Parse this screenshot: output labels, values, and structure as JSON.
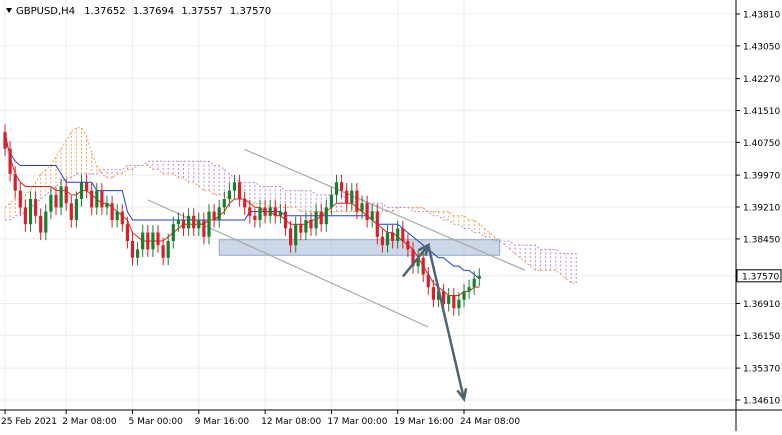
{
  "header": {
    "symbol": "GBPUSD,H4",
    "open": "1.37652",
    "high": "1.37694",
    "low": "1.37557",
    "close": "1.37570"
  },
  "chart_data": {
    "type": "candlestick",
    "symbol": "GBPUSD",
    "timeframe": "H4",
    "ylim": [
      1.3461,
      1.4381
    ],
    "y_ticks": [
      "1.43810",
      "1.43050",
      "1.42270",
      "1.41510",
      "1.40750",
      "1.39970",
      "1.39210",
      "1.38450",
      "1.37570",
      "1.36910",
      "1.36150",
      "1.35370",
      "1.34610"
    ],
    "y_tick_values": [
      1.4381,
      1.4305,
      1.4227,
      1.4151,
      1.4075,
      1.3997,
      1.3921,
      1.3845,
      1.3757,
      1.3691,
      1.3615,
      1.3537,
      1.3461
    ],
    "x_ticks": [
      "25 Feb 2021",
      "2 Mar 08:00",
      "5 Mar 00:00",
      "9 Mar 16:00",
      "12 Mar 08:00",
      "17 Mar 00:00",
      "19 Mar 16:00",
      "24 Mar 08:00"
    ],
    "x_tick_index": [
      0,
      12,
      25,
      38,
      51,
      64,
      77,
      90
    ],
    "current_price": "1.37570",
    "current_price_value": 1.3757,
    "closes": [
      1.406,
      1.4,
      1.396,
      1.392,
      1.388,
      1.394,
      1.39,
      1.386,
      1.391,
      1.395,
      1.392,
      1.397,
      1.393,
      1.389,
      1.394,
      1.398,
      1.396,
      1.392,
      1.396,
      1.392,
      1.393,
      1.389,
      1.391,
      1.388,
      1.384,
      1.38,
      1.382,
      1.386,
      1.382,
      1.386,
      1.383,
      1.38,
      1.384,
      1.388,
      1.389,
      1.387,
      1.39,
      1.387,
      1.389,
      1.385,
      1.391,
      1.389,
      1.392,
      1.394,
      1.396,
      1.398,
      1.394,
      1.392,
      1.39,
      1.389,
      1.392,
      1.39,
      1.392,
      1.39,
      1.391,
      1.387,
      1.383,
      1.388,
      1.386,
      1.389,
      1.387,
      1.391,
      1.388,
      1.392,
      1.395,
      1.398,
      1.396,
      1.393,
      1.396,
      1.391,
      1.393,
      1.389,
      1.391,
      1.385,
      1.383,
      1.386,
      1.384,
      1.387,
      1.384,
      1.382,
      1.378,
      1.38,
      1.376,
      1.373,
      1.37,
      1.372,
      1.369,
      1.371,
      1.368,
      1.37,
      1.372,
      1.373,
      1.375,
      1.3757
    ],
    "tenkan_sen": [
      1.41,
      1.404,
      1.4,
      1.398,
      1.397,
      1.397,
      1.397,
      1.397,
      1.397,
      1.397,
      1.396,
      1.396,
      1.396,
      1.395,
      1.395,
      1.396,
      1.396,
      1.395,
      1.394,
      1.393,
      1.393,
      1.392,
      1.391,
      1.39,
      1.389,
      1.386,
      1.385,
      1.384,
      1.384,
      1.384,
      1.384,
      1.384,
      1.385,
      1.386,
      1.387,
      1.388,
      1.388,
      1.388,
      1.388,
      1.388,
      1.389,
      1.389,
      1.39,
      1.391,
      1.393,
      1.394,
      1.394,
      1.394,
      1.393,
      1.392,
      1.392,
      1.391,
      1.391,
      1.39,
      1.39,
      1.389,
      1.388,
      1.388,
      1.388,
      1.388,
      1.389,
      1.389,
      1.39,
      1.391,
      1.392,
      1.393,
      1.393,
      1.393,
      1.393,
      1.392,
      1.391,
      1.39,
      1.389,
      1.388,
      1.387,
      1.386,
      1.386,
      1.385,
      1.384,
      1.383,
      1.382,
      1.38,
      1.378,
      1.376,
      1.374,
      1.373,
      1.372,
      1.371,
      1.371,
      1.371,
      1.372,
      1.372,
      1.373,
      1.373
    ],
    "kijun_sen": [
      1.408,
      1.405,
      1.403,
      1.402,
      1.402,
      1.402,
      1.402,
      1.402,
      1.402,
      1.402,
      1.402,
      1.4,
      1.398,
      1.398,
      1.398,
      1.398,
      1.398,
      1.398,
      1.396,
      1.396,
      1.396,
      1.396,
      1.396,
      1.396,
      1.391,
      1.389,
      1.389,
      1.389,
      1.389,
      1.389,
      1.389,
      1.389,
      1.389,
      1.389,
      1.389,
      1.389,
      1.389,
      1.389,
      1.389,
      1.389,
      1.389,
      1.389,
      1.389,
      1.389,
      1.389,
      1.389,
      1.389,
      1.389,
      1.391,
      1.391,
      1.391,
      1.391,
      1.391,
      1.391,
      1.391,
      1.39,
      1.39,
      1.39,
      1.39,
      1.39,
      1.39,
      1.39,
      1.39,
      1.39,
      1.39,
      1.39,
      1.39,
      1.39,
      1.39,
      1.39,
      1.39,
      1.39,
      1.389,
      1.388,
      1.388,
      1.388,
      1.388,
      1.388,
      1.387,
      1.386,
      1.385,
      1.384,
      1.383,
      1.382,
      1.381,
      1.38,
      1.38,
      1.379,
      1.378,
      1.378,
      1.377,
      1.377,
      1.376,
      1.375
    ],
    "cloud_span_a": [
      1.392,
      1.393,
      1.394,
      1.394,
      1.395,
      1.396,
      1.398,
      1.4,
      1.401,
      1.402,
      1.404,
      1.406,
      1.408,
      1.41,
      1.411,
      1.411,
      1.409,
      1.405,
      1.402,
      1.4,
      1.399,
      1.399,
      1.4,
      1.4,
      1.401,
      1.401,
      1.402,
      1.402,
      1.402,
      1.401,
      1.401,
      1.4,
      1.4,
      1.4,
      1.399,
      1.399,
      1.398,
      1.398,
      1.397,
      1.396,
      1.396,
      1.395,
      1.395,
      1.395,
      1.394,
      1.394,
      1.394,
      1.394,
      1.393,
      1.393,
      1.393,
      1.393,
      1.392,
      1.392,
      1.392,
      1.392,
      1.392,
      1.392,
      1.391,
      1.391,
      1.391,
      1.391,
      1.391,
      1.391,
      1.391,
      1.391,
      1.391,
      1.391,
      1.391,
      1.391,
      1.391,
      1.391,
      1.391,
      1.391,
      1.391,
      1.391,
      1.391,
      1.392,
      1.392,
      1.392,
      1.392,
      1.392,
      1.392,
      1.391,
      1.391,
      1.391,
      1.391,
      1.391,
      1.39,
      1.39,
      1.39,
      1.389,
      1.389,
      1.388,
      1.387,
      1.386,
      1.385,
      1.384,
      1.383,
      1.382,
      1.381,
      1.38,
      1.379,
      1.378,
      1.377,
      1.377,
      1.377,
      1.377,
      1.377,
      1.376,
      1.375,
      1.374,
      1.374
    ],
    "cloud_span_b": [
      1.389,
      1.389,
      1.39,
      1.39,
      1.391,
      1.392,
      1.393,
      1.394,
      1.395,
      1.396,
      1.397,
      1.398,
      1.399,
      1.399,
      1.4,
      1.4,
      1.4,
      1.4,
      1.4,
      1.401,
      1.401,
      1.401,
      1.401,
      1.401,
      1.402,
      1.402,
      1.402,
      1.402,
      1.403,
      1.403,
      1.403,
      1.403,
      1.403,
      1.403,
      1.403,
      1.403,
      1.403,
      1.403,
      1.403,
      1.403,
      1.403,
      1.402,
      1.402,
      1.401,
      1.4,
      1.399,
      1.398,
      1.398,
      1.398,
      1.398,
      1.397,
      1.397,
      1.397,
      1.397,
      1.397,
      1.396,
      1.396,
      1.396,
      1.396,
      1.396,
      1.396,
      1.395,
      1.395,
      1.395,
      1.395,
      1.395,
      1.395,
      1.394,
      1.394,
      1.394,
      1.394,
      1.393,
      1.393,
      1.393,
      1.393,
      1.392,
      1.392,
      1.392,
      1.392,
      1.392,
      1.391,
      1.391,
      1.391,
      1.391,
      1.39,
      1.39,
      1.389,
      1.389,
      1.388,
      1.388,
      1.387,
      1.387,
      1.386,
      1.386,
      1.385,
      1.385,
      1.384,
      1.384,
      1.384,
      1.384,
      1.383,
      1.383,
      1.383,
      1.383,
      1.383,
      1.382,
      1.382,
      1.382,
      1.382,
      1.381,
      1.381,
      1.381,
      1.381
    ],
    "channel_upper": [
      {
        "i": 47,
        "y": 1.4058
      },
      {
        "i": 102,
        "y": 1.377
      }
    ],
    "channel_lower": [
      {
        "i": 28,
        "y": 1.3938
      },
      {
        "i": 83,
        "y": 1.3635
      }
    ],
    "support_zone": {
      "i_start": 42,
      "i_end": 97,
      "y_top": 1.3843,
      "y_bottom": 1.3806
    },
    "forecast": [
      {
        "i": 78,
        "y": 1.3755
      },
      {
        "i": 83,
        "y": 1.383
      },
      {
        "i": 90,
        "y": 1.3463
      }
    ],
    "colors": {
      "bull": "#1b7d2e",
      "bear": "#d6202a",
      "tenkan": "#e2231a",
      "kijun": "#1f3fd6",
      "span_a": "#f5a05a",
      "span_b": "#b78ad9",
      "channel": "#a8a8a8",
      "zone": "#8fa8c9",
      "forecast": "#4e6470"
    },
    "grid": true
  }
}
